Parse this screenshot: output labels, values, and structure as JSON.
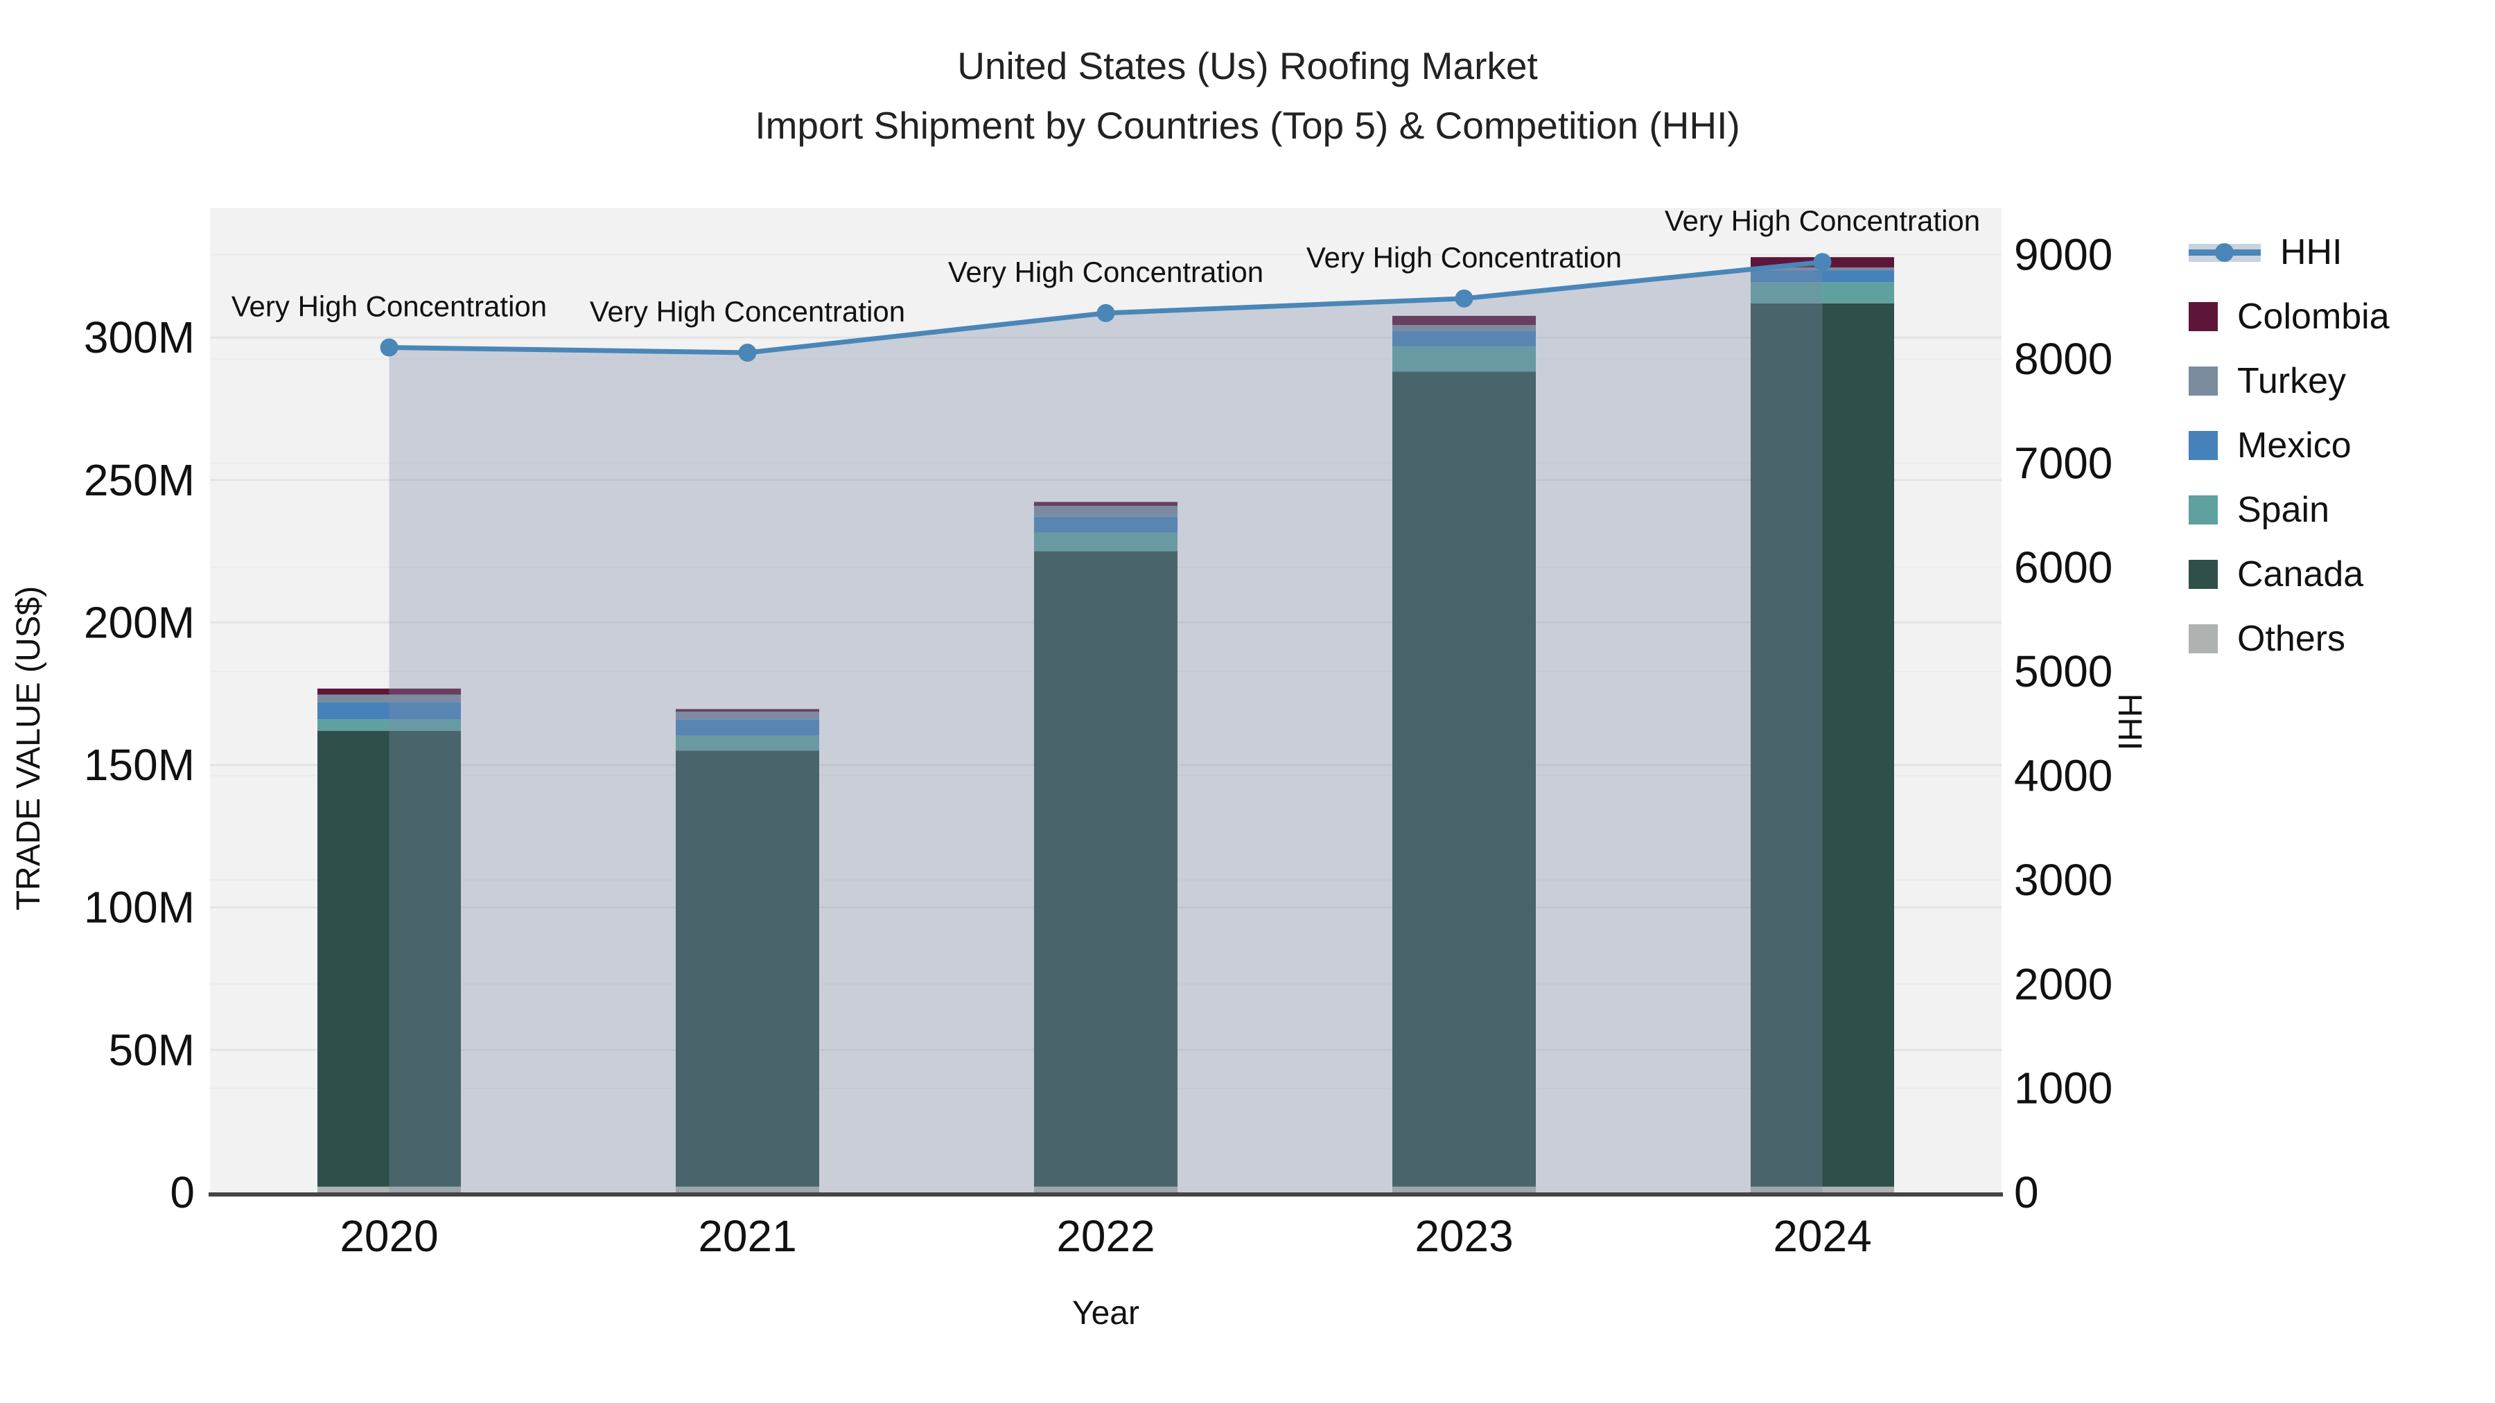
{
  "title": {
    "line1": "United States (Us) Roofing Market",
    "line2": "Import Shipment by Countries (Top 5) & Competition (HHI)"
  },
  "axes": {
    "x": {
      "title": "Year",
      "tick_labels": [
        "2020",
        "2021",
        "2022",
        "2023",
        "2024"
      ]
    },
    "left": {
      "title": "TRADE VALUE (US$)",
      "tick_values": [
        0,
        50,
        100,
        150,
        200,
        250,
        300
      ],
      "tick_labels": [
        "0",
        "50M",
        "100M",
        "150M",
        "200M",
        "250M",
        "300M"
      ],
      "max": 345.5
    },
    "right": {
      "title": "HHI",
      "tick_values": [
        0,
        1000,
        2000,
        3000,
        4000,
        5000,
        6000,
        7000,
        8000,
        9000
      ],
      "tick_labels": [
        "0",
        "1000",
        "2000",
        "3000",
        "4000",
        "5000",
        "6000",
        "7000",
        "8000",
        "9000"
      ],
      "max": 9450
    }
  },
  "chart_data": {
    "type": "combo: stacked-bar + line",
    "title": "United States (Us) Roofing Market — Import Shipment by Countries (Top 5) & Competition (HHI)",
    "xlabel": "Year",
    "ylabel_left": "TRADE VALUE (US$)",
    "ylabel_right": "HHI",
    "categories": [
      "2020",
      "2021",
      "2022",
      "2023",
      "2024"
    ],
    "bar_value_unit": "million US$",
    "stack_order_bottom_to_top": [
      "Others",
      "Canada",
      "Spain",
      "Mexico",
      "Turkey",
      "Colombia"
    ],
    "series": [
      {
        "name": "Others",
        "type": "bar",
        "color": "#AEB2B0",
        "values": [
          2,
          2,
          2,
          2,
          2
        ]
      },
      {
        "name": "Canada",
        "type": "bar",
        "color": "#2F4F4B",
        "values": [
          160,
          153,
          223,
          286,
          310
        ]
      },
      {
        "name": "Spain",
        "type": "bar",
        "color": "#5FA19E",
        "values": [
          4,
          5.3,
          6.6,
          8.9,
          7.4
        ]
      },
      {
        "name": "Mexico",
        "type": "bar",
        "color": "#4682B9",
        "values": [
          6,
          5.7,
          5.5,
          5.4,
          4.2
        ]
      },
      {
        "name": "Turkey",
        "type": "bar",
        "color": "#7A8C9E",
        "values": [
          2.7,
          2.7,
          3.8,
          2.1,
          1
        ]
      },
      {
        "name": "Colombia",
        "type": "bar",
        "color": "#5E1638",
        "values": [
          2.1,
          0.9,
          1.4,
          3.2,
          3.6
        ]
      },
      {
        "name": "HHI",
        "type": "line",
        "axis": "right",
        "color": "#4A86B8",
        "area_fill": "rgba(126,140,168,0.35)",
        "values": [
          8110,
          8060,
          8440,
          8580,
          8930
        ]
      }
    ],
    "bar_totals_approx": [
      176.8,
      169.6,
      242.3,
      307.6,
      328.2
    ],
    "annotations": [
      "Very High Concentration",
      "Very High Concentration",
      "Very High Concentration",
      "Very High Concentration",
      "Very High Concentration"
    ],
    "ylim_left": [
      0,
      345.5
    ],
    "ylim_right": [
      0,
      9450
    ],
    "grid": "both-y-axes",
    "plot_bg": "#F2F2F2",
    "grid_color_left": "#e2e2e2",
    "grid_color_right": "#ebebeb",
    "axis_line_color": "#444444",
    "legend_position": "right",
    "legend_order": [
      "HHI",
      "Colombia",
      "Turkey",
      "Mexico",
      "Spain",
      "Canada",
      "Others"
    ]
  },
  "legend": {
    "items": [
      {
        "label": "HHI",
        "swatch": "line-marker-band",
        "color": "#4A86B8"
      },
      {
        "label": "Colombia",
        "swatch": "square",
        "color": "#5E1638"
      },
      {
        "label": "Turkey",
        "swatch": "square",
        "color": "#7A8C9E"
      },
      {
        "label": "Mexico",
        "swatch": "square",
        "color": "#4682B9"
      },
      {
        "label": "Spain",
        "swatch": "square",
        "color": "#5FA19E"
      },
      {
        "label": "Canada",
        "swatch": "square",
        "color": "#2F4F4B"
      },
      {
        "label": "Others",
        "swatch": "square",
        "color": "#AEB2B0"
      }
    ]
  }
}
